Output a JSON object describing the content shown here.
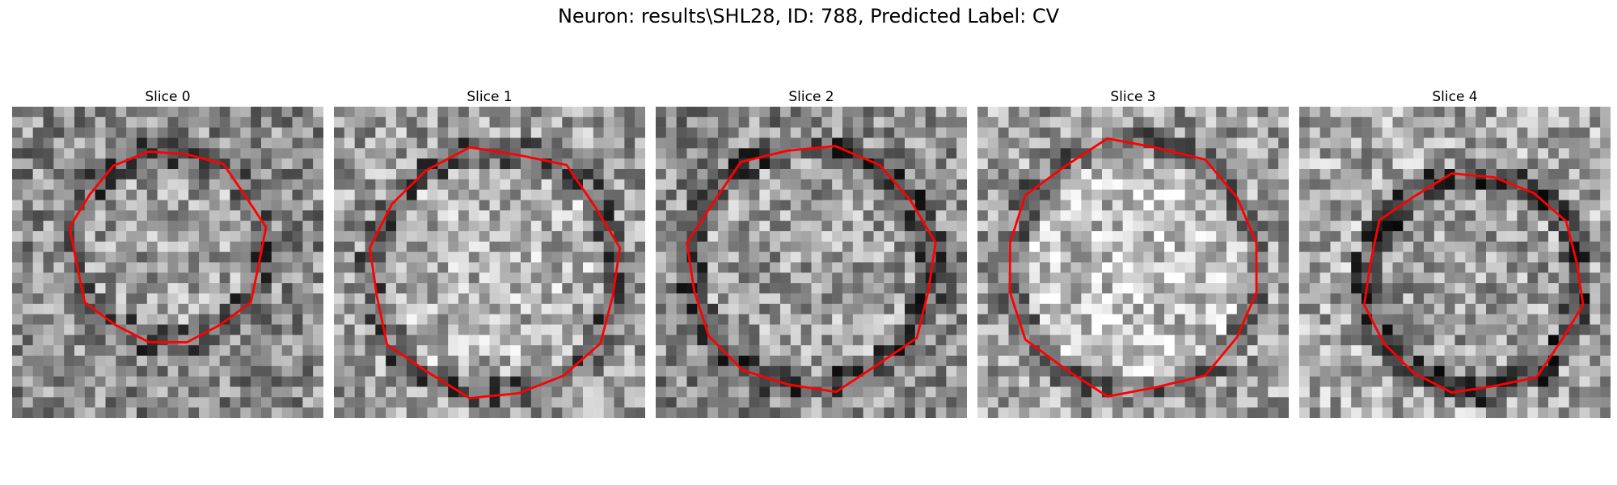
{
  "figure": {
    "title": "Neuron: results\\SHL28, ID: 788, Predicted Label: CV"
  },
  "colors": {
    "contour": "#ff0000",
    "background": "#ffffff"
  },
  "image_content": "grayscale electron-microscopy patches with red contour outlining a roughly circular neuron cross-section",
  "slices": [
    {
      "title": "Slice 0"
    },
    {
      "title": "Slice 1"
    },
    {
      "title": "Slice 2"
    },
    {
      "title": "Slice 3"
    },
    {
      "title": "Slice 4"
    }
  ]
}
